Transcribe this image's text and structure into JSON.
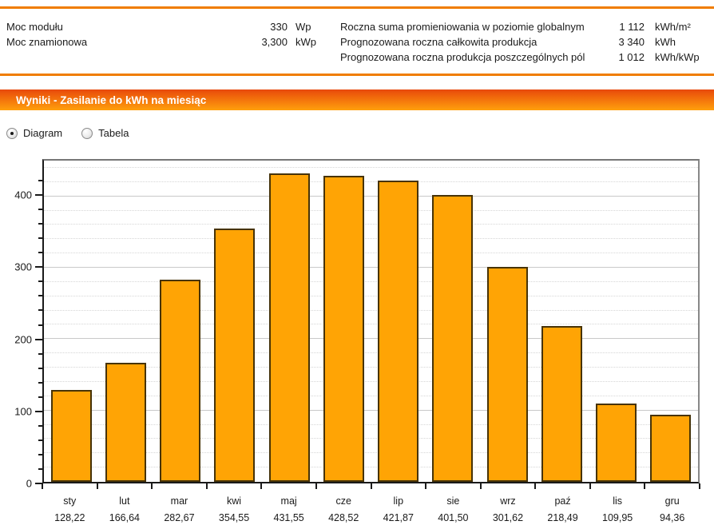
{
  "header": {
    "left": [
      {
        "label": "Moc modułu",
        "value": "330",
        "unit": "Wp"
      },
      {
        "label": "Moc znamionowa",
        "value": "3,300",
        "unit": "kWp"
      }
    ],
    "right": [
      {
        "label": "Roczna suma promieniowania w poziomie globalnym",
        "value": "1 112",
        "unit": "kWh/m²"
      },
      {
        "label": "Prognozowana roczna całkowita produkcja",
        "value": "3 340",
        "unit": "kWh"
      },
      {
        "label": "Prognozowana roczna produkcja poszczególnych pól",
        "value": "1 012",
        "unit": "kWh/kWp"
      }
    ]
  },
  "banner": {
    "title": "Wyniki - Zasilanie do kWh na miesiąc"
  },
  "view_toggle": {
    "options": [
      {
        "label": "Diagram",
        "selected": true
      },
      {
        "label": "Tabela",
        "selected": false
      }
    ]
  },
  "chart_data": {
    "type": "bar",
    "categories": [
      "sty",
      "lut",
      "mar",
      "kwi",
      "maj",
      "cze",
      "lip",
      "sie",
      "wrz",
      "paź",
      "lis",
      "gru"
    ],
    "values": [
      128.22,
      166.64,
      282.67,
      354.55,
      431.55,
      428.52,
      421.87,
      401.5,
      301.62,
      218.49,
      109.95,
      94.36
    ],
    "value_labels": [
      "128,22",
      "166,64",
      "282,67",
      "354,55",
      "431,55",
      "428,52",
      "421,87",
      "401,50",
      "301,62",
      "218,49",
      "109,95",
      "94,36"
    ],
    "title": "",
    "xlabel": "",
    "ylabel": "",
    "ylim": [
      0,
      450
    ],
    "ytick_major": 100,
    "ytick_minor": 20,
    "grid": true,
    "legend": "none",
    "bar_color": "#FFA405",
    "bar_border_color": "#473307"
  },
  "colors": {
    "accent_rule": "#F07D00",
    "banner_gradient_top": "#E8490B",
    "banner_gradient_bottom": "#FFA00C",
    "grid_major": "#C9C9C9",
    "grid_minor": "#D6D6D6"
  }
}
